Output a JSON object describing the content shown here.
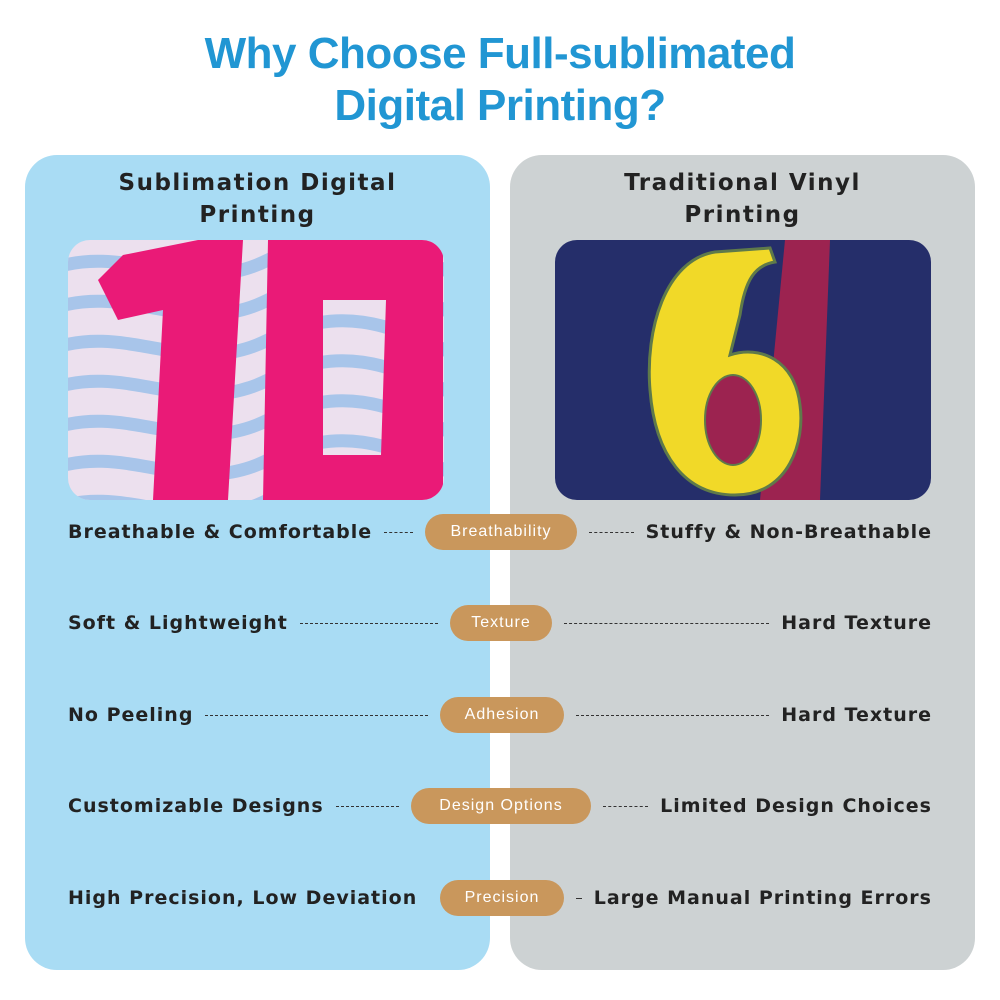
{
  "title": {
    "line1": "Why Choose Full-sublimated",
    "line2": "Digital Printing?"
  },
  "left_panel": {
    "title_line1": "Sublimation Digital",
    "title_line2": "Printing",
    "image": "pink-number-10-jersey-photo"
  },
  "right_panel": {
    "title_line1": "Traditional Vinyl",
    "title_line2": "Printing",
    "image": "yellow-number-6-jersey-photo"
  },
  "comparisons": [
    {
      "left": "Breathable & Comfortable",
      "label": "Breathability",
      "right": "Stuffy & Non-Breathable"
    },
    {
      "left": "Soft & Lightweight",
      "label": "Texture",
      "right": "Hard Texture"
    },
    {
      "left": "No Peeling",
      "label": "Adhesion",
      "right": "Hard Texture"
    },
    {
      "left": "Customizable Designs",
      "label": "Design Options",
      "right": "Limited Design Choices"
    },
    {
      "left": "High Precision, Low Deviation",
      "label": "Precision",
      "right": "Large Manual Printing Errors"
    }
  ],
  "colors": {
    "title": "#2196d3",
    "left_panel_bg": "#a9dcf4",
    "right_panel_bg": "#cdd2d3",
    "pill_bg": "#c9975c"
  }
}
